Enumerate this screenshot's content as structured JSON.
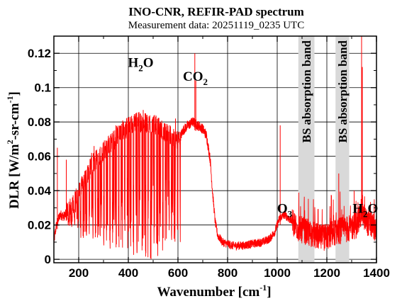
{
  "chart_data": {
    "type": "line",
    "title": "INO-CNR, REFIR-PAD spectrum",
    "subtitle": "Measurement data: 20251119_0235 UTC",
    "xlabel": {
      "main": "Wavenumber [cm",
      "sup": "-1",
      "tail": "]"
    },
    "ylabel": {
      "p1": "DLR [W/m",
      "sup1": "2",
      "p2": "-sr-cm",
      "sup2": "-1",
      "p3": "]"
    },
    "xlim": [
      100,
      1400
    ],
    "ylim": [
      -0.002,
      0.13
    ],
    "xticks": [
      200,
      400,
      600,
      800,
      1000,
      1200,
      1400
    ],
    "xtick_labels": [
      "200",
      "400",
      "600",
      "800",
      "1000",
      "1200",
      "1400"
    ],
    "yticks": [
      0,
      0.02,
      0.04,
      0.06,
      0.08,
      0.1,
      0.12
    ],
    "ytick_labels": [
      "0",
      "0.02",
      "0.04",
      "0.06",
      "0.08",
      "0.1",
      "0.12"
    ],
    "grid": true,
    "series_color": "#ff0000",
    "band_color": "#d9d9d9",
    "bands": [
      {
        "x0": 1085,
        "x1": 1150,
        "label": "BS absorption band"
      },
      {
        "x0": 1235,
        "x1": 1290,
        "label": "BS absorption band"
      }
    ],
    "annotations": [
      {
        "id": "h2o-left",
        "base": "H",
        "sub": "2",
        "tail": "O",
        "x": 450,
        "y": 0.112
      },
      {
        "id": "co2",
        "base": "CO",
        "sub": "2",
        "tail": "",
        "x": 670,
        "y": 0.104
      },
      {
        "id": "o3",
        "base": "O",
        "sub": "3",
        "tail": "",
        "x": 1030,
        "y": 0.027
      },
      {
        "id": "h2o-right",
        "base": "H",
        "sub": "2",
        "tail": "O",
        "x": 1355,
        "y": 0.027
      }
    ],
    "envelope": [
      [
        100,
        0.01
      ],
      [
        110,
        0.02
      ],
      [
        125,
        0.026
      ],
      [
        140,
        0.025
      ],
      [
        160,
        0.028
      ],
      [
        180,
        0.032
      ],
      [
        200,
        0.037
      ],
      [
        220,
        0.044
      ],
      [
        240,
        0.05
      ],
      [
        260,
        0.055
      ],
      [
        280,
        0.058
      ],
      [
        300,
        0.062
      ],
      [
        320,
        0.065
      ],
      [
        340,
        0.068
      ],
      [
        360,
        0.072
      ],
      [
        380,
        0.074
      ],
      [
        400,
        0.076
      ],
      [
        420,
        0.078
      ],
      [
        440,
        0.079
      ],
      [
        460,
        0.079
      ],
      [
        480,
        0.078
      ],
      [
        500,
        0.078
      ],
      [
        520,
        0.076
      ],
      [
        540,
        0.074
      ],
      [
        560,
        0.072
      ],
      [
        580,
        0.07
      ],
      [
        600,
        0.068
      ],
      [
        620,
        0.075
      ],
      [
        640,
        0.078
      ],
      [
        660,
        0.08
      ],
      [
        680,
        0.078
      ],
      [
        700,
        0.076
      ],
      [
        715,
        0.072
      ],
      [
        730,
        0.058
      ],
      [
        740,
        0.038
      ],
      [
        750,
        0.022
      ],
      [
        760,
        0.014
      ],
      [
        780,
        0.01
      ],
      [
        820,
        0.008
      ],
      [
        860,
        0.008
      ],
      [
        900,
        0.009
      ],
      [
        940,
        0.01
      ],
      [
        970,
        0.012
      ],
      [
        990,
        0.016
      ],
      [
        1010,
        0.024
      ],
      [
        1030,
        0.026
      ],
      [
        1060,
        0.022
      ],
      [
        1085,
        0.018
      ],
      [
        1150,
        0.014
      ],
      [
        1180,
        0.012
      ],
      [
        1210,
        0.014
      ],
      [
        1235,
        0.016
      ],
      [
        1290,
        0.018
      ],
      [
        1320,
        0.02
      ],
      [
        1340,
        0.028
      ],
      [
        1360,
        0.022
      ],
      [
        1380,
        0.02
      ],
      [
        1400,
        0.018
      ]
    ],
    "spikes": [
      [
        114,
        0.065
      ],
      [
        150,
        0.058
      ],
      [
        252,
        0.062
      ],
      [
        262,
        0.066
      ],
      [
        280,
        0.062
      ],
      [
        300,
        0.068
      ],
      [
        330,
        0.072
      ],
      [
        350,
        0.078
      ],
      [
        380,
        0.08
      ],
      [
        400,
        0.082
      ],
      [
        430,
        0.085
      ],
      [
        460,
        0.087
      ],
      [
        470,
        0.085
      ],
      [
        500,
        0.083
      ],
      [
        530,
        0.08
      ],
      [
        548,
        0.077
      ],
      [
        590,
        0.082
      ],
      [
        668,
        0.12
      ],
      [
        672,
        0.104
      ],
      [
        1012,
        0.078
      ],
      [
        1340,
        0.13
      ],
      [
        1343,
        0.112
      ],
      [
        1310,
        0.04
      ],
      [
        1248,
        0.05
      ]
    ],
    "dip_ranges": [
      {
        "x0": 150,
        "x1": 200,
        "min": 0.018
      },
      {
        "x0": 200,
        "x1": 300,
        "min": 0.012
      },
      {
        "x0": 300,
        "x1": 400,
        "min": 0.006
      },
      {
        "x0": 400,
        "x1": 550,
        "min": 0.0
      },
      {
        "x0": 550,
        "x1": 610,
        "min": 0.01
      }
    ]
  }
}
